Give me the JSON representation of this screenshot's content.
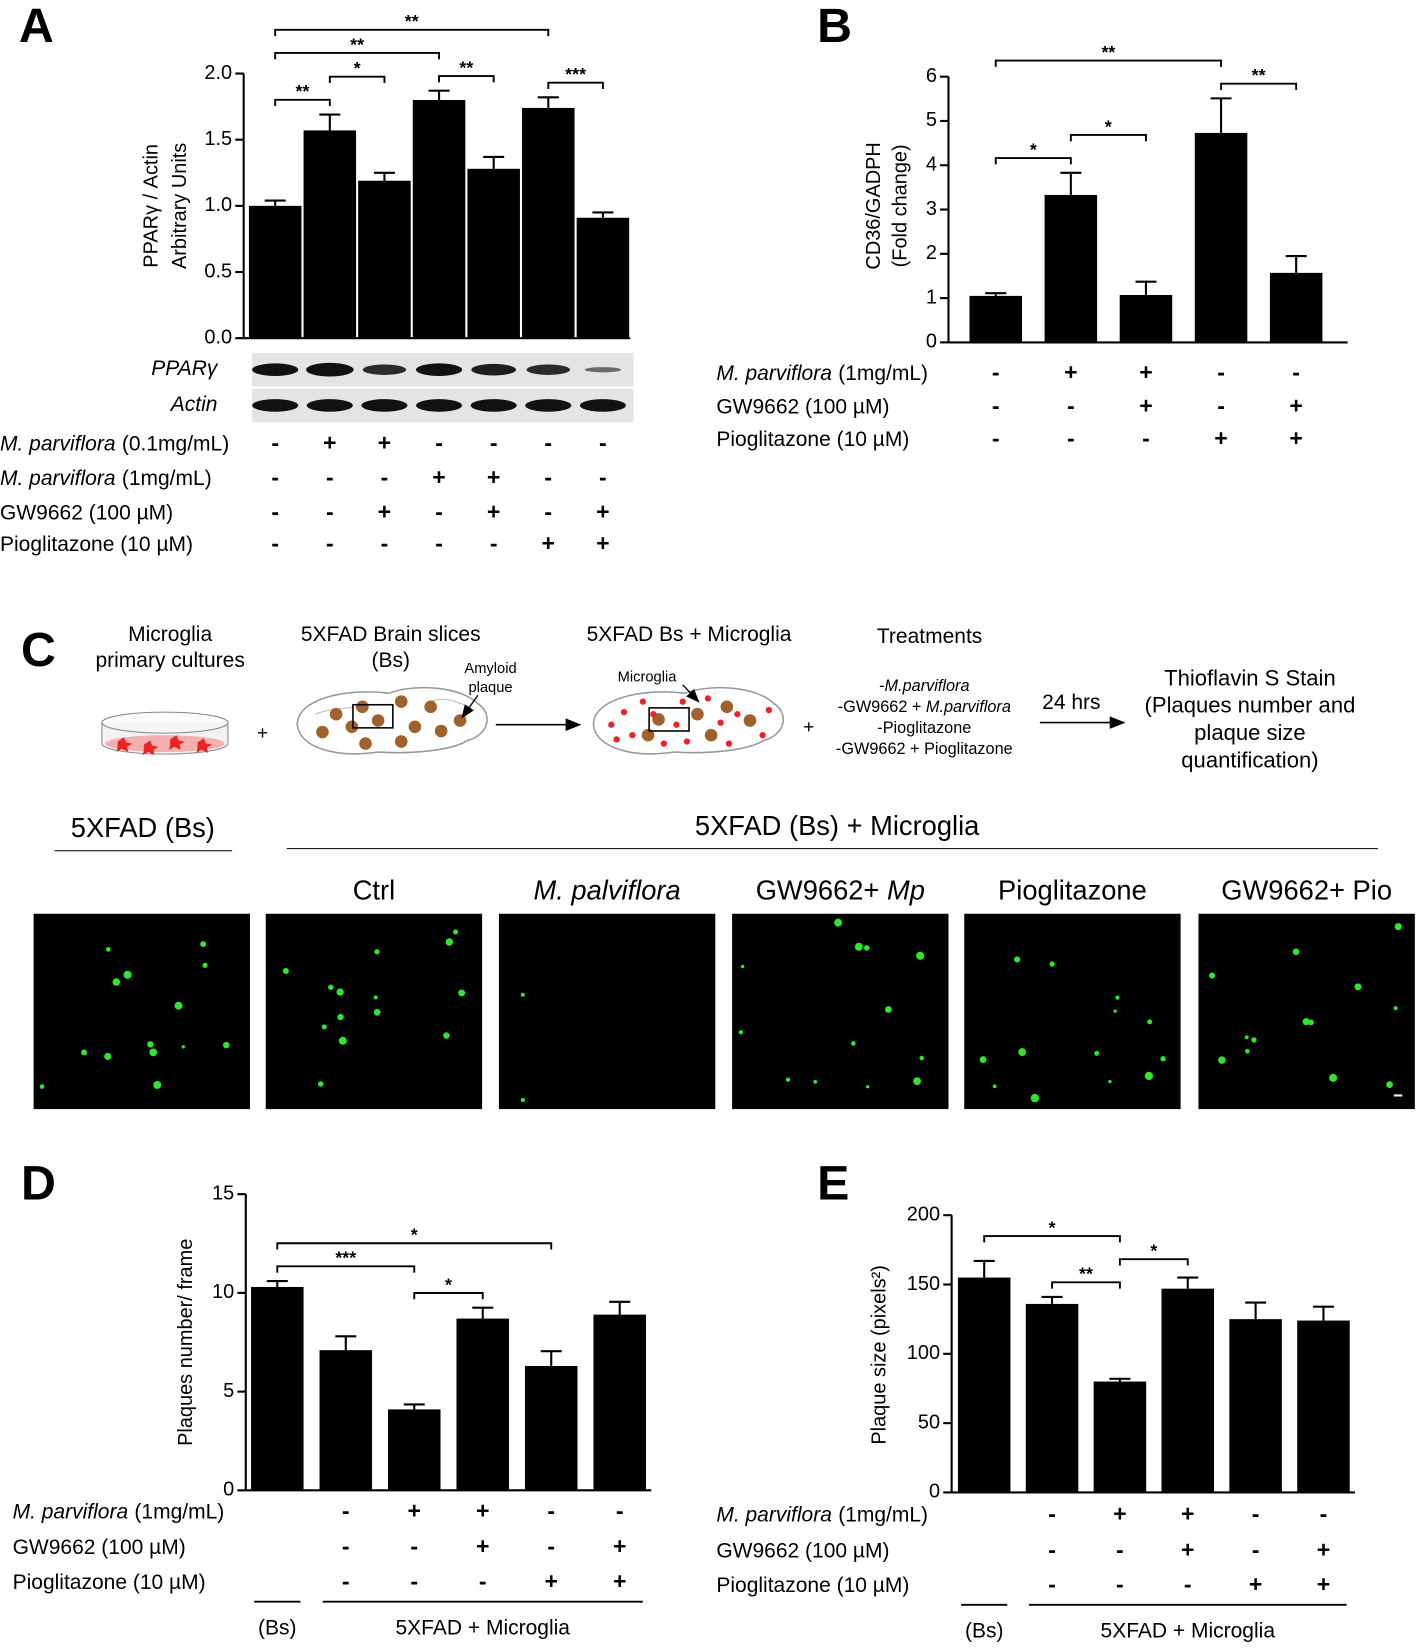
{
  "chart_data": [
    {
      "panel": "A",
      "type": "bar",
      "color": "#000000",
      "ylabel": [
        "PPARγ / Actin",
        "Arbitrary Units"
      ],
      "values": [
        1.0,
        1.57,
        1.19,
        1.8,
        1.28,
        1.74,
        0.91
      ],
      "errors": [
        0.04,
        0.12,
        0.06,
        0.07,
        0.09,
        0.08,
        0.04
      ],
      "ylim": [
        0,
        2
      ],
      "yticks": [
        {
          "value": 0,
          "label": "0.0"
        },
        0.5,
        {
          "value": 1,
          "label": "1.0"
        },
        1.5,
        {
          "value": 2,
          "label": "2.0"
        }
      ],
      "blot": [
        {
          "label": "PPARγ"
        },
        {
          "label": "Actin"
        }
      ],
      "treatments": [
        {
          "italic": "M. parviflora",
          "text": "(0.1mg/mL)",
          "signs": [
            "-",
            "+",
            "+",
            "-",
            "-",
            "-",
            "-"
          ]
        },
        {
          "italic": "M. parviflora",
          "text": "(1mg/mL)",
          "signs": [
            "-",
            "-",
            "-",
            "+",
            "+",
            "-",
            "-"
          ]
        },
        {
          "text": "GW9662 (100 µM)",
          "signs": [
            "-",
            "-",
            "+",
            "-",
            "+",
            "-",
            "+"
          ]
        },
        {
          "text": "Pioglitazone (10 µM)",
          "signs": [
            "-",
            "-",
            "-",
            "-",
            "-",
            "+",
            "+"
          ]
        }
      ],
      "brackets": [
        {
          "from": 0,
          "to": 1,
          "label": "**"
        },
        {
          "from": 1,
          "to": 2,
          "label": "*"
        },
        {
          "from": 3,
          "to": 4,
          "label": "**"
        },
        {
          "from": 5,
          "to": 6,
          "label": "***"
        },
        {
          "from": 0,
          "to": 3,
          "label": "**"
        },
        {
          "from": 0,
          "to": 5,
          "label": "**"
        }
      ]
    },
    {
      "panel": "B",
      "type": "bar",
      "color": "#000000",
      "ylabel": [
        "CD36/GADPH",
        "(Fold change)"
      ],
      "values": [
        1.05,
        3.33,
        1.07,
        4.73,
        1.57
      ],
      "errors": [
        0.06,
        0.5,
        0.3,
        0.78,
        0.38
      ],
      "ylim": [
        0,
        6
      ],
      "yticks": [
        0,
        1,
        2,
        3,
        4,
        5,
        6
      ],
      "treatments": [
        {
          "italic": "M. parviflora",
          "text": "(1mg/mL)",
          "signs": [
            "-",
            "+",
            "+",
            "-",
            "-"
          ]
        },
        {
          "text": "GW9662 (100 µM)",
          "signs": [
            "-",
            "-",
            "+",
            "-",
            "+"
          ]
        },
        {
          "text": "Pioglitazone (10 µM)",
          "signs": [
            "-",
            "-",
            "-",
            "+",
            "+"
          ]
        }
      ],
      "brackets": [
        {
          "from": 0,
          "to": 1,
          "label": "*"
        },
        {
          "from": 1,
          "to": 2,
          "label": "*"
        },
        {
          "from": 3,
          "to": 4,
          "label": "**"
        },
        {
          "from": 0,
          "to": 3,
          "label": "**"
        }
      ]
    },
    {
      "panel": "D",
      "type": "bar",
      "color": "#000000",
      "ylabel": [
        "Plaques number/ frame"
      ],
      "values": [
        10.3,
        7.1,
        4.1,
        8.7,
        6.3,
        8.9
      ],
      "errors": [
        0.3,
        0.7,
        0.25,
        0.55,
        0.75,
        0.65
      ],
      "ylim": [
        0,
        15
      ],
      "yticks": [
        0,
        5,
        10,
        15
      ],
      "treatments": [
        {
          "italic": "M. parviflora",
          "text": "(1mg/mL)",
          "signs": [
            null,
            "-",
            "+",
            "+",
            "-",
            "-"
          ]
        },
        {
          "text": "GW9662 (100 µM)",
          "signs": [
            null,
            "-",
            "-",
            "+",
            "-",
            "+"
          ]
        },
        {
          "text": "Pioglitazone (10 µM)",
          "signs": [
            null,
            "-",
            "-",
            "-",
            "+",
            "+"
          ]
        }
      ],
      "groups": [
        {
          "label": "(Bs)",
          "from": 0,
          "to": 0
        },
        {
          "label": "5XFAD + Microglia",
          "from": 1,
          "to": 5
        }
      ],
      "brackets": [
        {
          "from": 2,
          "to": 3,
          "label": "*"
        },
        {
          "from": 0,
          "to": 2,
          "label": "***"
        },
        {
          "from": 0,
          "to": 4,
          "label": "*"
        }
      ]
    },
    {
      "panel": "E",
      "type": "bar",
      "color": "#000000",
      "ylabel": [
        "Plaque size (pixels²)"
      ],
      "values": [
        155,
        136,
        80,
        147,
        125,
        124
      ],
      "errors": [
        12,
        5,
        2,
        8,
        12,
        10
      ],
      "ylim": [
        0,
        200
      ],
      "yticks": [
        0,
        50,
        100,
        150,
        200
      ],
      "treatments": [
        {
          "italic": "M. parviflora",
          "text": "(1mg/mL)",
          "signs": [
            null,
            "-",
            "+",
            "+",
            "-",
            "-"
          ]
        },
        {
          "text": "GW9662 (100 µM)",
          "signs": [
            null,
            "-",
            "-",
            "+",
            "-",
            "+"
          ]
        },
        {
          "text": "Pioglitazone (10 µM)",
          "signs": [
            null,
            "-",
            "-",
            "-",
            "+",
            "+"
          ]
        }
      ],
      "groups": [
        {
          "label": "(Bs)",
          "from": 0,
          "to": 0
        },
        {
          "label": "5XFAD + Microglia",
          "from": 1,
          "to": 5
        }
      ],
      "brackets": [
        {
          "from": 1,
          "to": 2,
          "label": "**"
        },
        {
          "from": 2,
          "to": 3,
          "label": "*"
        },
        {
          "from": 0,
          "to": 2,
          "label": "*"
        }
      ]
    }
  ],
  "diagram": {
    "panel": "C",
    "step1": [
      "Microglia",
      "primary cultures"
    ],
    "step2": [
      "5XFAD Brain slices",
      "(Bs)"
    ],
    "plaque_label": [
      "Amyloid",
      "plaque"
    ],
    "step3": "5XFAD Bs + Microglia",
    "microglia_label": "Microglia",
    "plus": "+",
    "treatments_title": "Treatments",
    "treatments": [
      {
        "text": "-",
        "italic": "M.parviflora"
      },
      {
        "text": "-GW9662 + ",
        "italic": "M.parviflora"
      },
      {
        "text": "-Pioglitazone"
      },
      {
        "text": "-GW9662 + Pioglitazone"
      }
    ],
    "duration": "24 hrs",
    "readout": [
      "Thioflavin S Stain",
      "(Plaques number and",
      "plaque size",
      "quantification)"
    ],
    "group_bs": "5XFAD (Bs)",
    "group_mg": "5XFAD (Bs) + Microglia",
    "image_titles": [
      {
        "text": "Ctrl"
      },
      {
        "italic": "M. palviflora"
      },
      {
        "text": "GW9662+ ",
        "italic": "Mp"
      },
      {
        "text": "Pioglitazone"
      },
      {
        "text": "GW9662+ Pio"
      }
    ]
  }
}
